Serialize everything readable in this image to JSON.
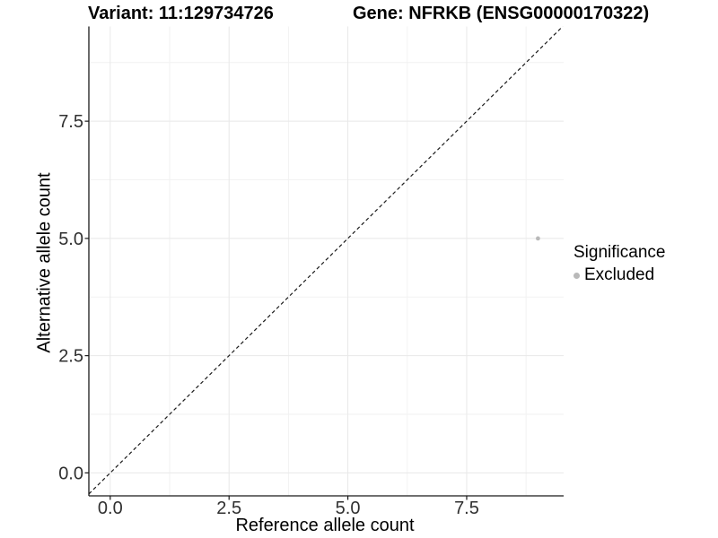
{
  "chart_data": {
    "type": "scatter",
    "titles": {
      "left": "Variant: 11:129734726",
      "right": "Gene: NFRKB (ENSG00000170322)"
    },
    "xlabel": "Reference allele count",
    "ylabel": "Alternative allele count",
    "x_ticks": {
      "values": [
        0,
        2.5,
        5,
        7.5
      ],
      "labels": [
        "0.0",
        "2.5",
        "5.0",
        "7.5"
      ]
    },
    "y_ticks": {
      "values": [
        0,
        2.5,
        5,
        7.5
      ],
      "labels": [
        "0.0",
        "2.5",
        "5.0",
        "7.5"
      ]
    },
    "x_minor": [
      1.25,
      3.75,
      6.25,
      8.75
    ],
    "y_minor": [
      1.25,
      3.75,
      6.25,
      8.75
    ],
    "xlim": [
      -0.45,
      9.54
    ],
    "ylim": [
      -0.49,
      9.52
    ],
    "grid": true,
    "points": [
      {
        "x": 9,
        "y": 5,
        "series": "Excluded"
      }
    ],
    "reference_line": {
      "type": "identity",
      "slope": 1,
      "intercept": 0,
      "style": "dashed"
    },
    "legend": {
      "title": "Significance",
      "position": "right",
      "items": [
        {
          "label": "Excluded",
          "color": "#b9b9b9"
        }
      ]
    },
    "colors": {
      "point": "#b9b9b9",
      "grid_major": "#e8e8e8",
      "grid_minor": "#f2f2f2",
      "axis_line": "#1a1a1a",
      "tick_label": "#303030",
      "dashed_line": "#1a1a1a",
      "background": "#ffffff"
    }
  }
}
